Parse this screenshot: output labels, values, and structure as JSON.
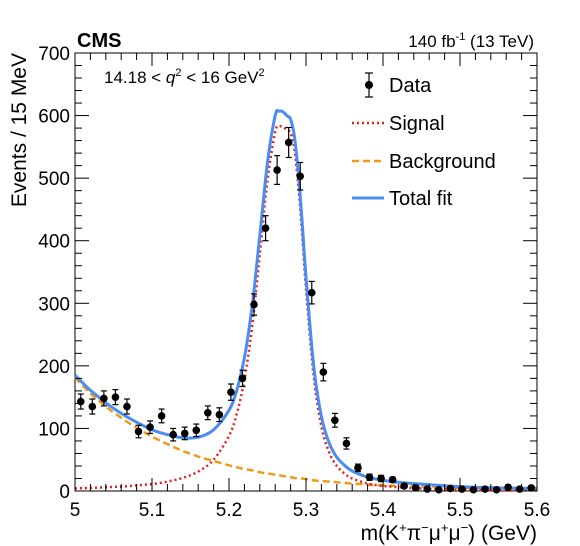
{
  "chart_data": {
    "type": "scatter",
    "experiment": "CMS",
    "lumi": "140 fb",
    "lumi_sup": "-1",
    "energy": " (13 TeV)",
    "cut": {
      "pre": "14.18 < ",
      "var": "q",
      "var_sup": "2",
      "post": " < 16 GeV",
      "unit_sup": "2"
    },
    "xlabel": {
      "pre": "m(K",
      "s1": "+",
      "m1": "π",
      "s2": "−",
      "m2": "μ",
      "s3": "+",
      "m3": "μ",
      "s4": "−",
      "post": ") (GeV)"
    },
    "ylabel": "Events / 15 MeV",
    "xlim": [
      5.0,
      5.6
    ],
    "ylim": [
      0,
      700
    ],
    "xticks": [
      5.0,
      5.1,
      5.2,
      5.3,
      5.4,
      5.5,
      5.6
    ],
    "xtick_labels": [
      "5",
      "5.1",
      "5.2",
      "5.3",
      "5.4",
      "5.5",
      "5.6"
    ],
    "yticks": [
      0,
      100,
      200,
      300,
      400,
      500,
      600,
      700
    ],
    "ytick_labels": [
      "0",
      "100",
      "200",
      "300",
      "400",
      "500",
      "600",
      "700"
    ],
    "legend": [
      {
        "label": "Data",
        "style": "marker",
        "color": "#000000"
      },
      {
        "label": "Signal",
        "style": "dotted",
        "color": "#e02020"
      },
      {
        "label": "Background",
        "style": "dashed",
        "color": "#f09a1a"
      },
      {
        "label": "Total fit",
        "style": "solid",
        "color": "#4a8cf0"
      }
    ],
    "data": {
      "x": [
        5.0075,
        5.0225,
        5.0375,
        5.0525,
        5.0675,
        5.0825,
        5.0975,
        5.1125,
        5.1275,
        5.1425,
        5.1575,
        5.1725,
        5.1875,
        5.2025,
        5.2175,
        5.2325,
        5.2475,
        5.2625,
        5.2775,
        5.2925,
        5.3075,
        5.3225,
        5.3375,
        5.3525,
        5.3675,
        5.3825,
        5.3975,
        5.4125,
        5.4275,
        5.4425,
        5.4575,
        5.4725,
        5.4875,
        5.5025,
        5.5175,
        5.5325,
        5.5475,
        5.5625,
        5.5775,
        5.5925
      ],
      "y": [
        143,
        135,
        148,
        150,
        135,
        95,
        102,
        120,
        90,
        92,
        97,
        125,
        122,
        158,
        180,
        298,
        420,
        513,
        557,
        503,
        317,
        190,
        113,
        76,
        37,
        22,
        20,
        18,
        8,
        5,
        3,
        2,
        4,
        3,
        2,
        3,
        2,
        6,
        3,
        5
      ],
      "err": [
        12,
        12,
        12,
        12,
        12,
        10,
        10,
        11,
        10,
        10,
        10,
        11,
        11,
        13,
        13,
        17,
        20,
        23,
        24,
        22,
        18,
        14,
        11,
        9,
        6,
        5,
        5,
        4,
        3,
        2,
        2,
        2,
        2,
        2,
        2,
        2,
        2,
        3,
        2,
        2
      ]
    },
    "curves": {
      "x": [
        5.0,
        5.02,
        5.04,
        5.06,
        5.08,
        5.1,
        5.12,
        5.14,
        5.16,
        5.18,
        5.2,
        5.21,
        5.22,
        5.23,
        5.24,
        5.25,
        5.26,
        5.265,
        5.27,
        5.275,
        5.28,
        5.285,
        5.29,
        5.295,
        5.3,
        5.31,
        5.32,
        5.33,
        5.34,
        5.35,
        5.36,
        5.38,
        5.4,
        5.42,
        5.45,
        5.5,
        5.55,
        5.6
      ],
      "signal": [
        4,
        5,
        6,
        7,
        9,
        11,
        15,
        21,
        31,
        50,
        88,
        123,
        178,
        262,
        378,
        497,
        574,
        582,
        582,
        577,
        572,
        545,
        488,
        409,
        323,
        183,
        103,
        62,
        40,
        28,
        20,
        12,
        8,
        6,
        4,
        2,
        1,
        1
      ],
      "background": [
        181,
        156,
        135,
        117,
        101,
        87,
        75,
        64,
        55,
        48,
        41,
        38,
        35,
        33,
        30,
        28,
        26,
        25,
        24,
        23,
        22,
        21,
        20,
        20,
        19,
        17,
        16,
        15,
        14,
        13,
        12,
        10,
        9,
        8,
        7,
        5,
        4,
        3
      ],
      "total": [
        185,
        161,
        141,
        124,
        110,
        98,
        90,
        85,
        86,
        98,
        129,
        161,
        213,
        295,
        408,
        525,
        600,
        607,
        606,
        600,
        594,
        566,
        508,
        429,
        342,
        200,
        119,
        77,
        54,
        41,
        32,
        22,
        17,
        14,
        11,
        7,
        5,
        4
      ]
    }
  }
}
